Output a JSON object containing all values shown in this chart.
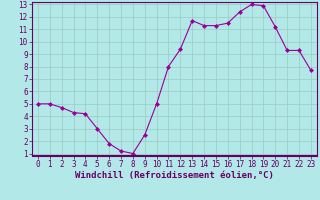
{
  "x": [
    0,
    1,
    2,
    3,
    4,
    5,
    6,
    7,
    8,
    9,
    10,
    11,
    12,
    13,
    14,
    15,
    16,
    17,
    18,
    19,
    20,
    21,
    22,
    23
  ],
  "y": [
    5.0,
    5.0,
    4.7,
    4.3,
    4.2,
    3.0,
    1.8,
    1.2,
    1.0,
    2.5,
    5.0,
    8.0,
    9.4,
    11.7,
    11.3,
    11.3,
    11.5,
    12.4,
    13.0,
    12.9,
    11.2,
    9.3,
    9.3,
    7.7
  ],
  "line_color": "#990099",
  "marker": "D",
  "marker_size": 2.0,
  "bg_color": "#b3e8e8",
  "grid_color": "#99ccbb",
  "xlim": [
    -0.5,
    23.5
  ],
  "ylim": [
    0.8,
    13.2
  ],
  "yticks": [
    1,
    2,
    3,
    4,
    5,
    6,
    7,
    8,
    9,
    10,
    11,
    12,
    13
  ],
  "xticks": [
    0,
    1,
    2,
    3,
    4,
    5,
    6,
    7,
    8,
    9,
    10,
    11,
    12,
    13,
    14,
    15,
    16,
    17,
    18,
    19,
    20,
    21,
    22,
    23
  ],
  "xlabel": "Windchill (Refroidissement éolien,°C)",
  "xlabel_fontsize": 6.5,
  "tick_fontsize": 5.5,
  "spine_color": "#660066",
  "axis_color": "#660066",
  "line_width": 0.8
}
